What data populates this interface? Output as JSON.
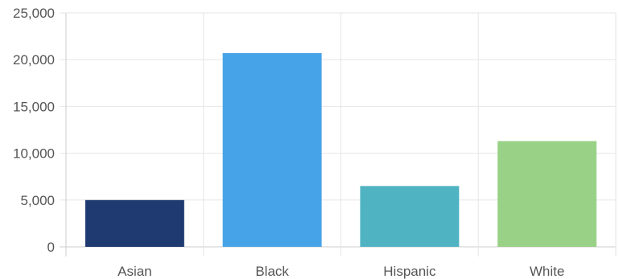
{
  "chart_data": {
    "type": "bar",
    "title": "",
    "xlabel": "",
    "ylabel": "",
    "categories": [
      "Asian",
      "Black",
      "Hispanic",
      "White"
    ],
    "values": [
      5000,
      20700,
      6500,
      11300
    ],
    "colors": [
      "#1e3a70",
      "#47a3e8",
      "#50b3c2",
      "#99d186"
    ],
    "ylim": [
      0,
      25000
    ],
    "y_ticks": [
      0,
      5000,
      10000,
      15000,
      20000,
      25000
    ],
    "y_tick_labels": [
      "0",
      "5,000",
      "10,000",
      "15,000",
      "20,000",
      "25,000"
    ],
    "grid": true,
    "legend": "none"
  }
}
